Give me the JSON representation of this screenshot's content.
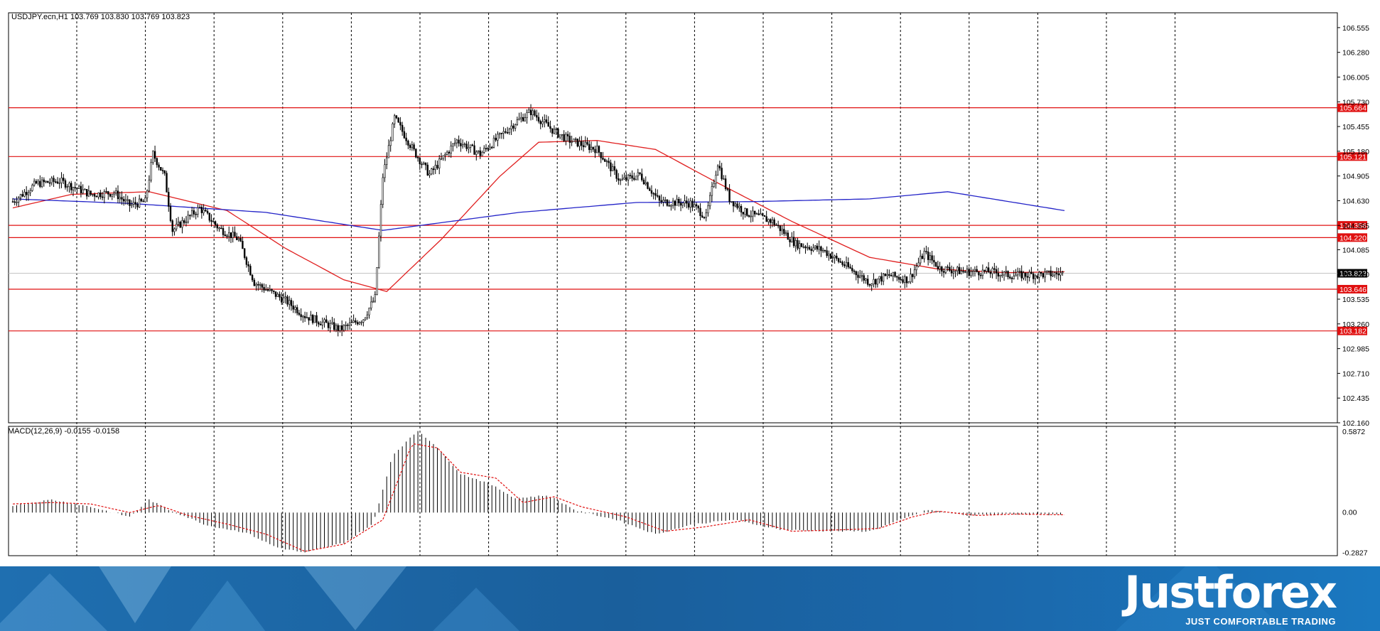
{
  "header": {
    "symbol_info": "USDJPY.ecn,H1  103.769 103.830 103.769 103.823",
    "macd_info": "MACD(12,26,9) -0.0155 -0.0158"
  },
  "chart_data": {
    "type": "candlestick",
    "symbol": "USDJPY.ecn",
    "timeframe": "H1",
    "ohlc_last": {
      "open": 103.769,
      "high": 103.83,
      "low": 103.769,
      "close": 103.823
    },
    "price_axis": {
      "ticks": [
        "106.555",
        "106.280",
        "106.005",
        "105.730",
        "105.455",
        "105.180",
        "104.905",
        "104.630",
        "104.355",
        "104.085",
        "103.810",
        "103.535",
        "103.260",
        "102.985",
        "102.710",
        "102.435",
        "102.160"
      ],
      "range": [
        102.16,
        106.72
      ]
    },
    "levels": [
      {
        "label": "105.664",
        "value": 105.664
      },
      {
        "label": "105.121",
        "value": 105.121
      },
      {
        "label": "104.356",
        "value": 104.356
      },
      {
        "label": "104.220",
        "value": 104.22
      },
      {
        "label": "103.646",
        "value": 103.646
      },
      {
        "label": "103.182",
        "value": 103.182
      }
    ],
    "current_price": {
      "label": "103.823",
      "value": 103.823
    },
    "close_anchors": [
      [
        0,
        104.62
      ],
      [
        12,
        104.82
      ],
      [
        24,
        104.85
      ],
      [
        40,
        104.7
      ],
      [
        52,
        104.72
      ],
      [
        60,
        104.58
      ],
      [
        68,
        104.62
      ],
      [
        72,
        105.15
      ],
      [
        78,
        104.9
      ],
      [
        82,
        104.3
      ],
      [
        96,
        104.55
      ],
      [
        106,
        104.32
      ],
      [
        116,
        104.2
      ],
      [
        124,
        103.72
      ],
      [
        140,
        103.52
      ],
      [
        150,
        103.35
      ],
      [
        168,
        103.2
      ],
      [
        180,
        103.32
      ],
      [
        186,
        103.55
      ],
      [
        190,
        104.9
      ],
      [
        196,
        105.55
      ],
      [
        206,
        105.18
      ],
      [
        214,
        104.92
      ],
      [
        228,
        105.3
      ],
      [
        240,
        105.15
      ],
      [
        258,
        105.5
      ],
      [
        266,
        105.62
      ],
      [
        278,
        105.4
      ],
      [
        286,
        105.3
      ],
      [
        300,
        105.2
      ],
      [
        312,
        104.85
      ],
      [
        322,
        104.92
      ],
      [
        332,
        104.62
      ],
      [
        348,
        104.6
      ],
      [
        356,
        104.45
      ],
      [
        362,
        105.05
      ],
      [
        368,
        104.65
      ],
      [
        376,
        104.5
      ],
      [
        390,
        104.4
      ],
      [
        402,
        104.15
      ],
      [
        416,
        104.08
      ],
      [
        428,
        103.9
      ],
      [
        440,
        103.72
      ],
      [
        450,
        103.8
      ],
      [
        460,
        103.75
      ],
      [
        468,
        104.05
      ],
      [
        476,
        103.88
      ],
      [
        488,
        103.84
      ],
      [
        502,
        103.84
      ],
      [
        512,
        103.8
      ],
      [
        530,
        103.81
      ],
      [
        540,
        103.82
      ]
    ],
    "moving_averages": [
      {
        "color": "#e02020",
        "anchors": [
          [
            0,
            104.55
          ],
          [
            30,
            104.7
          ],
          [
            70,
            104.73
          ],
          [
            110,
            104.52
          ],
          [
            140,
            104.1
          ],
          [
            170,
            103.75
          ],
          [
            192,
            103.62
          ],
          [
            220,
            104.2
          ],
          [
            250,
            104.9
          ],
          [
            270,
            105.28
          ],
          [
            300,
            105.3
          ],
          [
            330,
            105.2
          ],
          [
            360,
            104.85
          ],
          [
            400,
            104.4
          ],
          [
            440,
            104.0
          ],
          [
            475,
            103.87
          ],
          [
            510,
            103.83
          ],
          [
            540,
            103.84
          ]
        ]
      },
      {
        "color": "#2323c8",
        "anchors": [
          [
            0,
            104.65
          ],
          [
            60,
            104.6
          ],
          [
            130,
            104.5
          ],
          [
            190,
            104.3
          ],
          [
            260,
            104.5
          ],
          [
            320,
            104.61
          ],
          [
            380,
            104.62
          ],
          [
            440,
            104.65
          ],
          [
            480,
            104.73
          ],
          [
            540,
            104.52
          ]
        ]
      }
    ],
    "macd": {
      "label": "MACD(12,26,9)",
      "main": -0.0155,
      "signal": -0.0158,
      "axis_ticks": [
        "0.5872",
        "0.00",
        "-0.2827"
      ],
      "range": [
        -0.3,
        0.6
      ],
      "hist_anchors": [
        [
          0,
          0.05
        ],
        [
          20,
          0.09
        ],
        [
          40,
          0.04
        ],
        [
          60,
          -0.03
        ],
        [
          70,
          0.09
        ],
        [
          80,
          0.02
        ],
        [
          100,
          -0.09
        ],
        [
          120,
          -0.14
        ],
        [
          135,
          -0.24
        ],
        [
          150,
          -0.28
        ],
        [
          170,
          -0.21
        ],
        [
          185,
          -0.08
        ],
        [
          195,
          0.4
        ],
        [
          208,
          0.57
        ],
        [
          216,
          0.48
        ],
        [
          230,
          0.27
        ],
        [
          245,
          0.2
        ],
        [
          258,
          0.1
        ],
        [
          275,
          0.12
        ],
        [
          290,
          0.01
        ],
        [
          310,
          -0.05
        ],
        [
          330,
          -0.15
        ],
        [
          350,
          -0.08
        ],
        [
          370,
          -0.05
        ],
        [
          395,
          -0.12
        ],
        [
          420,
          -0.13
        ],
        [
          440,
          -0.13
        ],
        [
          460,
          -0.03
        ],
        [
          470,
          0.02
        ],
        [
          490,
          -0.02
        ],
        [
          510,
          -0.01
        ],
        [
          540,
          -0.0155
        ]
      ],
      "signal_anchors": [
        [
          0,
          0.06
        ],
        [
          20,
          0.07
        ],
        [
          40,
          0.06
        ],
        [
          60,
          0.0
        ],
        [
          75,
          0.05
        ],
        [
          90,
          -0.02
        ],
        [
          110,
          -0.08
        ],
        [
          130,
          -0.15
        ],
        [
          150,
          -0.27
        ],
        [
          170,
          -0.22
        ],
        [
          190,
          -0.05
        ],
        [
          205,
          0.48
        ],
        [
          218,
          0.45
        ],
        [
          230,
          0.28
        ],
        [
          248,
          0.24
        ],
        [
          262,
          0.07
        ],
        [
          278,
          0.11
        ],
        [
          292,
          0.04
        ],
        [
          315,
          -0.03
        ],
        [
          335,
          -0.13
        ],
        [
          355,
          -0.1
        ],
        [
          378,
          -0.05
        ],
        [
          400,
          -0.13
        ],
        [
          425,
          -0.12
        ],
        [
          445,
          -0.11
        ],
        [
          462,
          -0.03
        ],
        [
          475,
          0.01
        ],
        [
          495,
          -0.02
        ],
        [
          515,
          -0.01
        ],
        [
          540,
          -0.0158
        ]
      ]
    },
    "grid": "vertical dashed",
    "legend": ""
  },
  "banner": {
    "brand_name": "Justforex",
    "tagline": "JUST COMFORTABLE TRADING",
    "accent_color": "#1a6eb3"
  }
}
